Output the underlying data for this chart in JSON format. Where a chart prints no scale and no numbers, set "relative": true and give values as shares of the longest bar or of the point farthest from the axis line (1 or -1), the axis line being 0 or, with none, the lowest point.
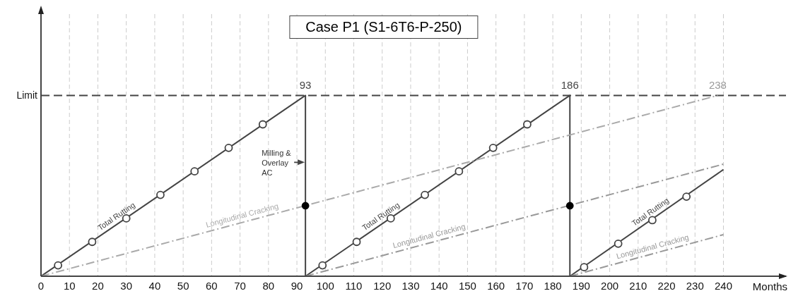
{
  "chart_data": {
    "type": "line",
    "title": "Case P1 (S1-6T6-P-250)",
    "xlabel": "Months",
    "relative": true,
    "xlim": [
      0,
      262
    ],
    "xticks": [
      0,
      10,
      20,
      30,
      40,
      50,
      60,
      70,
      80,
      90,
      100,
      110,
      120,
      130,
      140,
      150,
      160,
      170,
      180,
      190,
      200,
      210,
      220,
      230,
      240
    ],
    "grid": "x",
    "line_style": "solid",
    "series": [
      {
        "name": "Total Rutting",
        "color": "#444444",
        "x": [
          0,
          93,
          93
        ],
        "values": [
          0,
          1,
          0
        ],
        "marker": "none"
      },
      {
        "name": "Total Rutting",
        "color": "#444444",
        "x": [
          93,
          186,
          186
        ],
        "values": [
          0,
          1,
          0
        ],
        "marker": "none"
      },
      {
        "name": "Total Rutting",
        "color": "#444444",
        "x": [
          186,
          240
        ],
        "values": [
          0,
          0.59
        ],
        "marker": "none"
      },
      {
        "name": "Longitudinal Cracking",
        "color": "#aaaaaa",
        "x": [
          0,
          238
        ],
        "values": [
          0,
          1
        ],
        "marker": "none",
        "line_style": "dashed"
      },
      {
        "name": "Longitudinal Cracking",
        "color": "#999999",
        "x": [
          93,
          240
        ],
        "values": [
          0,
          0.62
        ],
        "marker": "none",
        "line_style": "dashed"
      },
      {
        "name": "Longitudinal Cracking",
        "color": "#999999",
        "x": [
          186,
          240
        ],
        "values": [
          0,
          0.23
        ],
        "marker": "none",
        "line_style": "dashed"
      },
      {
        "type": "scatter",
        "color": "#444444",
        "x": [
          6,
          18,
          30,
          42,
          54,
          66,
          78,
          99,
          111,
          123,
          135,
          147,
          159,
          171,
          191,
          203,
          215,
          227
        ],
        "values": [
          0.06,
          0.19,
          0.32,
          0.45,
          0.58,
          0.71,
          0.84,
          0.06,
          0.19,
          0.32,
          0.45,
          0.58,
          0.71,
          0.84,
          0.05,
          0.18,
          0.31,
          0.44
        ],
        "marker": "circle"
      },
      {
        "type": "scatter",
        "color": "#000000",
        "x": [
          93,
          186
        ],
        "values": [
          0.39,
          0.39
        ],
        "marker": "circle"
      }
    ],
    "ref_lines": [
      {
        "axis": "y",
        "value": 1,
        "label": "Limit",
        "color": "#444444",
        "line_style": "dashed"
      }
    ],
    "annotations": [
      {
        "text": "93",
        "x": 93,
        "y": 1
      },
      {
        "text": "186",
        "x": 186,
        "y": 1
      },
      {
        "text": "238",
        "x": 238,
        "y": 1
      },
      {
        "text": "Milling & Overlay AC",
        "x": 93,
        "y": 0.63
      }
    ]
  }
}
